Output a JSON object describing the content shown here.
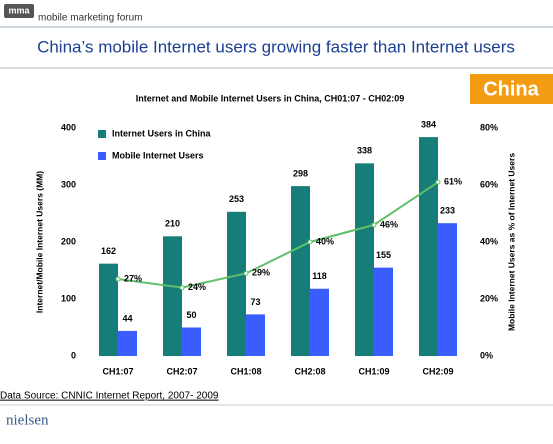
{
  "header": {
    "logo": "mma",
    "forum": "mobile marketing forum"
  },
  "slide_title": "China’s mobile Internet users growing faster than Internet users",
  "badge": "China",
  "source": "Data Source: CNNIC Internet Report, 2007- 2009",
  "footer_logo": "nielsen",
  "chart_data": {
    "type": "bar",
    "title": "Internet and Mobile Internet Users in China, CH01:07 - CH02:09",
    "y_label": "Internet/Mobile Internet Users (MM)",
    "y2_label": "Mobile Internet Users as % of Internet Users",
    "categories": [
      "CH1:07",
      "CH2:07",
      "CH1:08",
      "CH2:08",
      "CH1:09",
      "CH2:09"
    ],
    "series": [
      {
        "name": "Internet Users in China",
        "color": "#167d78",
        "values": [
          162,
          210,
          253,
          298,
          338,
          384
        ]
      },
      {
        "name": "Mobile Internet Users",
        "color": "#3a5dff",
        "values": [
          44,
          50,
          73,
          118,
          155,
          233
        ]
      },
      {
        "type": "line",
        "axis": "y2",
        "color": "#5fbf6a",
        "values": [
          27,
          24,
          29,
          40,
          46,
          61
        ],
        "value_labels": [
          "27%",
          "24%",
          "29%",
          "40%",
          "46%",
          "61%"
        ]
      }
    ],
    "ylim": [
      0,
      400
    ],
    "yticks": [
      0,
      100,
      200,
      300,
      400
    ],
    "y2lim": [
      0,
      80
    ],
    "y2ticks": [
      {
        "value": 0,
        "label": "0%"
      },
      {
        "value": 20,
        "label": "20%"
      },
      {
        "value": 40,
        "label": "40%"
      },
      {
        "value": 60,
        "label": "60%"
      },
      {
        "value": 80,
        "label": "80%"
      }
    ],
    "legend": "upper-left"
  }
}
